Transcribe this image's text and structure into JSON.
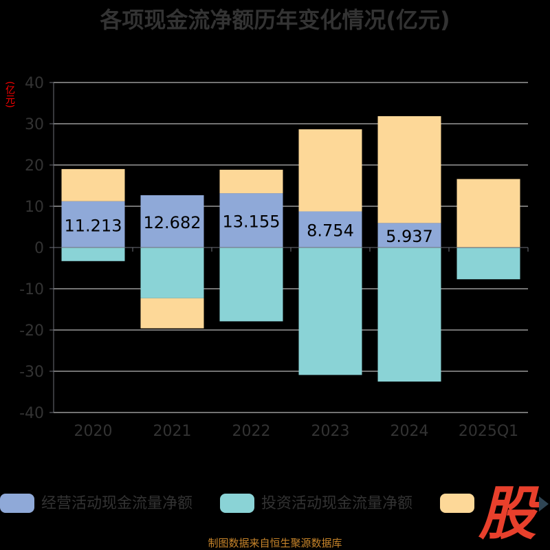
{
  "title": "各项现金流净额历年变化情况(亿元)",
  "unit_label": "(亿元)",
  "source": "制图数据来自恒生聚源数据库",
  "logo_text": "股",
  "legend": [
    {
      "label": "经营活动现金流量净额",
      "color": "#8fa9d8"
    },
    {
      "label": "投资活动现金流量净额",
      "color": "#8ad3d6"
    },
    {
      "label": "",
      "color": "#fdd898"
    }
  ],
  "chart_data": {
    "type": "bar",
    "stacked": true,
    "categories": [
      "2020",
      "2021",
      "2022",
      "2023",
      "2024",
      "2025Q1"
    ],
    "ylim": [
      -40,
      40
    ],
    "yticks": [
      40,
      30,
      20,
      10,
      0,
      -10,
      -20,
      -30,
      -40
    ],
    "grid": true,
    "legend_position": "bottom",
    "series": [
      {
        "name": "经营活动现金流量净额",
        "color": "#8fa9d8",
        "values": [
          11.213,
          12.682,
          13.155,
          8.754,
          5.937,
          -0.1
        ]
      },
      {
        "name": "投资活动现金流量净额",
        "color": "#8ad3d6",
        "values": [
          -3.3,
          -12.3,
          -17.9,
          -30.9,
          -32.5,
          -7.6
        ]
      },
      {
        "name": "",
        "color": "#fdd898",
        "values": [
          7.8,
          -7.3,
          5.7,
          19.9,
          25.9,
          16.6
        ]
      }
    ],
    "data_labels": [
      "11.213",
      "12.682",
      "13.155",
      "8.754",
      "5.937",
      ""
    ]
  }
}
